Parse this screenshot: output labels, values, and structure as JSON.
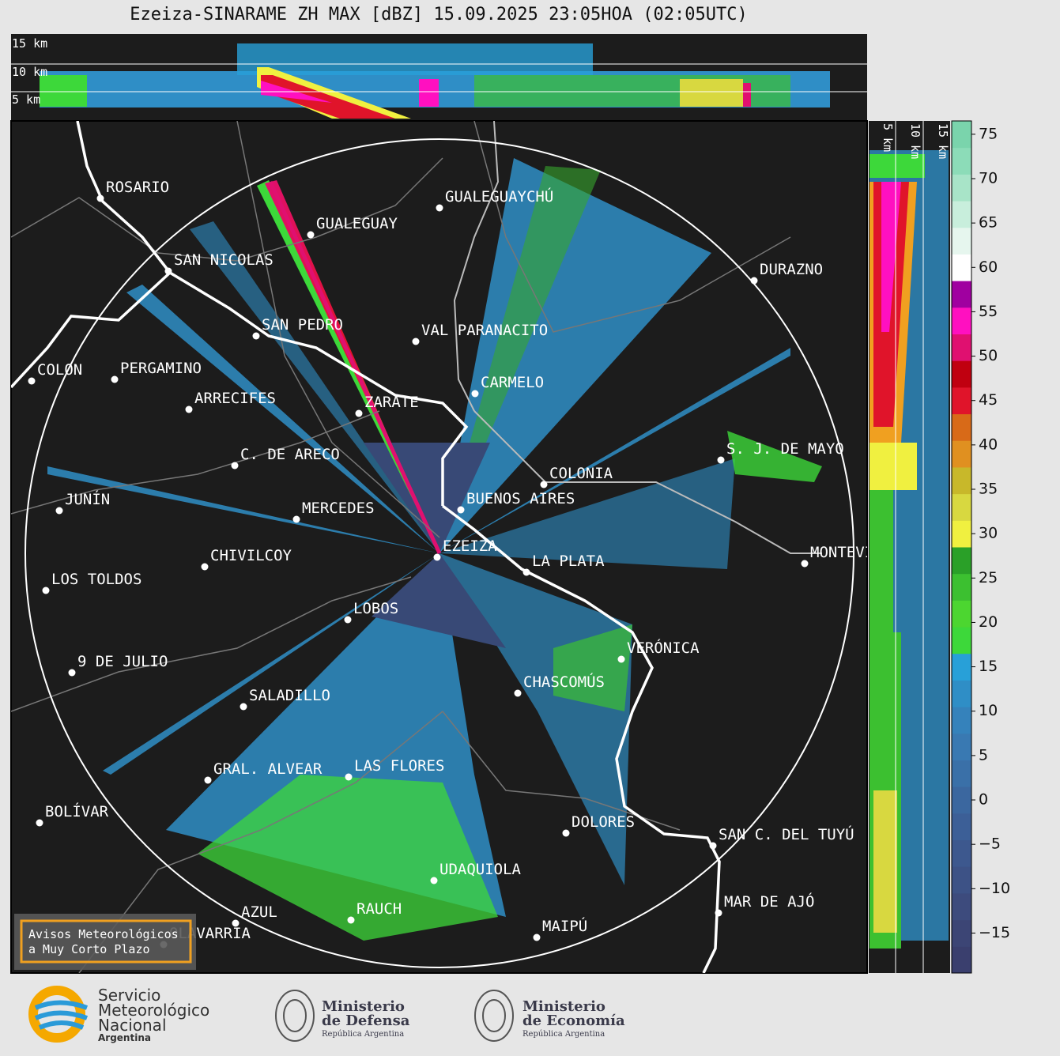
{
  "header": {
    "title": "Ezeiza-SINARAME ZH MAX [dBZ] 15.09.2025 23:05HOA (02:05UTC)"
  },
  "top_panel": {
    "height_labels": [
      "15 km",
      "10 km",
      "5 km"
    ]
  },
  "side_panel": {
    "height_labels": [
      "5 km",
      "10 km",
      "15 km"
    ]
  },
  "cities": [
    "ROSARIO",
    "SAN NICOLAS",
    "GUALEGUAY",
    "GUALEGUAYCHÚ",
    "DURAZNO",
    "SAN PEDRO",
    "VAL PARANACITO",
    "COLON",
    "PERGAMINO",
    "CARMELO",
    "ARRECIFES",
    "ZARATE",
    "C. DE ARECO",
    "S. J. DE MAYO",
    "COLONIA",
    "JUNÍN",
    "BUENOS AIRES",
    "MERCEDES",
    "EZEIZA",
    "MONTEVIDEO",
    "CHIVILCOY",
    "LA PLATA",
    "LOS TOLDOS",
    "LOBOS",
    "VERÓNICA",
    "9 DE JULIO",
    "CHASCOMÚS",
    "SALADILLO",
    "GRAL. ALVEAR",
    "LAS FLORES",
    "BOLÍVAR",
    "DOLORES",
    "SAN C. DEL TUYÚ",
    "UDAQUIOLA",
    "MAR DE AJÓ",
    "AZUL",
    "RAUCH",
    "OLAVARRÍA",
    "MAIPÚ"
  ],
  "notice": {
    "lines": [
      "Avisos Meteorológicos",
      "a Muy Corto Plazo"
    ]
  },
  "colorbar": {
    "ylim": [
      -19.5,
      76.5
    ],
    "yticks": [
      {
        "value": -15,
        "label": "−15"
      },
      {
        "value": -10,
        "label": "−10"
      },
      {
        "value": -5,
        "label": "−5"
      },
      0,
      5,
      10,
      15,
      20,
      25,
      30,
      35,
      40,
      45,
      50,
      55,
      60,
      65,
      70,
      75
    ],
    "colors": [
      "#3a3f6e",
      "#3c4575",
      "#3d4b7d",
      "#3d5286",
      "#3d588e",
      "#3c5f97",
      "#3b679f",
      "#3a70a8",
      "#3979b2",
      "#3582bb",
      "#2f8ec6",
      "#28a0d8",
      "#3dd83a",
      "#4cd630",
      "#3cc030",
      "#2aa028",
      "#f0f040",
      "#d8d840",
      "#c8b82a",
      "#e09020",
      "#d86a18",
      "#e0142a",
      "#c00010",
      "#e01070",
      "#ff10c0",
      "#a000a0",
      "#ffffff",
      "#e6f6ee",
      "#c8eedc",
      "#a8e4c8",
      "#8cdcb8",
      "#7ad4ac"
    ]
  },
  "logos": {
    "smn": [
      "Servicio",
      "Meteorológico",
      "Nacional",
      "Argentina"
    ],
    "defensa": [
      "Ministerio",
      "de Defensa",
      "República Argentina"
    ],
    "economia": [
      "Ministerio",
      "de Economía",
      "República Argentina"
    ]
  }
}
